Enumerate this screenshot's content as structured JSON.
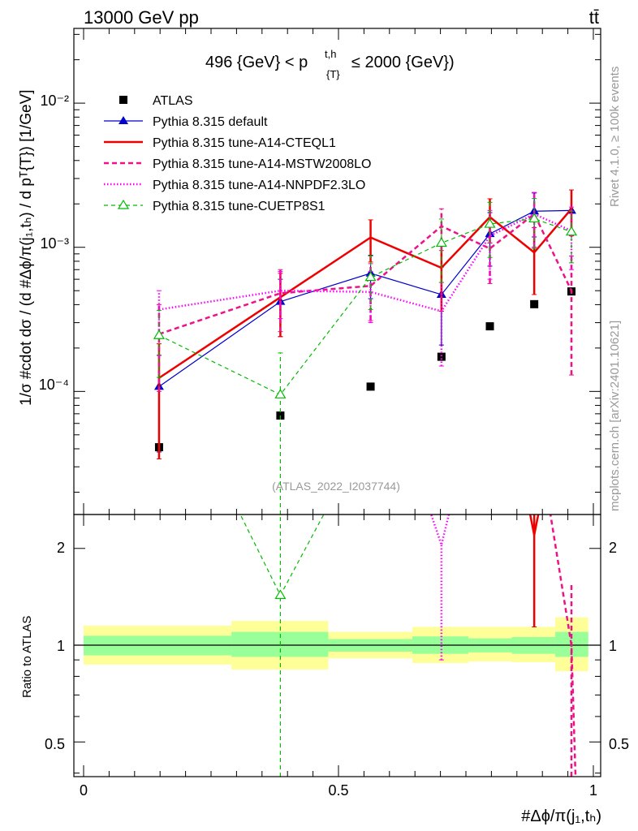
{
  "header": {
    "energy_label": "13000 GeV pp",
    "process_label": "tt̄",
    "range_label": "496 {GeV} < p",
    "range_sup": "t,h",
    "range_sub": "{T}",
    "range_tail": "≤ 2000 {GeV})",
    "watermark": "(ATLAS_2022_I2037744)",
    "side_rivet": "Rivet 4.1.0, ≥ 100k events",
    "side_site": "mcplots.cern.ch [arXiv:2401.10621]"
  },
  "axes": {
    "ylabel_main": "1/σ #cdot dσ / (d #Δϕ/π(j₁,tₕ) / d pᵀ{T}) [1/GeV]",
    "ylabel_ratio": "Ratio to ATLAS",
    "xlabel": "#Δϕ/π(j₁,tₕ)",
    "x_ticks": [
      "0",
      "0.5",
      "1"
    ],
    "main_y_ticks": [
      "10⁻⁴",
      "10⁻³",
      "10⁻²"
    ],
    "ratio_ticks": [
      "0.5",
      "1",
      "2"
    ]
  },
  "chart_data": [
    {
      "type": "scatter",
      "panel": "main",
      "yscale": "log",
      "xlim": [
        0,
        1
      ],
      "ylim": [
        1.4e-05,
        0.033
      ],
      "x": [
        0.148,
        0.386,
        0.563,
        0.702,
        0.797,
        0.884,
        0.957
      ],
      "x_edges": [
        0,
        0.29,
        0.48,
        0.645,
        0.755,
        0.84,
        0.925,
        0.99
      ],
      "series": [
        {
          "name": "ATLAS",
          "style": "data",
          "color": "#000000",
          "values": [
            4.1e-05,
            6.8e-05,
            0.000108,
            0.000174,
            0.000283,
            0.000403,
            0.000494
          ]
        },
        {
          "name": "Pythia 8.315 default",
          "style": "blue_tri",
          "color": "#0000cc",
          "values": [
            0.000108,
            0.00042,
            0.00066,
            0.00047,
            0.00124,
            0.00178,
            0.0018
          ],
          "err": [
            7e-05,
            0.00018,
            0.00022,
            0.00026,
            0.0005,
            0.0006,
            0.0
          ]
        },
        {
          "name": "Pythia 8.315 tune-A14-CTEQL1",
          "style": "red_solid",
          "color": "#ee0000",
          "values": [
            0.000124,
            0.00045,
            0.00117,
            0.00072,
            0.00162,
            0.00092,
            0.00185
          ],
          "err": [
            9e-05,
            0.00021,
            0.00038,
            0.00036,
            0.00055,
            0.00045,
            0.00065
          ]
        },
        {
          "name": "Pythia 8.315 tune-A14-MSTW2008LO",
          "style": "magenta_dash",
          "color": "#ee1188",
          "values": [
            0.00025,
            0.00048,
            0.00054,
            0.0014,
            0.00098,
            0.0017,
            0.0005
          ],
          "err": [
            0.00015,
            0.00022,
            0.00023,
            0.00045,
            0.00042,
            0.0007,
            0.00037
          ]
        },
        {
          "name": "Pythia 8.315 tune-A14-NNPDF2.3LO",
          "style": "magenta_dot",
          "color": "#ff00ff",
          "values": [
            0.00037,
            0.0005,
            0.00049,
            0.00036,
            0.0012,
            0.0017,
            0.0013
          ],
          "err": [
            0.00013,
            0.00018,
            0.00019,
            0.00021,
            0.0006,
            0.0007,
            0.0006
          ]
        },
        {
          "name": "Pythia 8.315 tune-CUETP8S1",
          "style": "green_dash",
          "color": "#00bb00",
          "values": [
            0.000245,
            9.5e-05,
            0.00062,
            0.00107,
            0.00145,
            0.00158,
            0.00128
          ],
          "err": [
            0.00012,
            9e-05,
            0.00025,
            0.0005,
            0.0006,
            0.0006,
            0.0005
          ]
        }
      ],
      "legend": [
        "ATLAS",
        "Pythia 8.315 default",
        "Pythia 8.315 tune-A14-CTEQL1",
        "Pythia 8.315 tune-A14-MSTW2008LO",
        "Pythia 8.315 tune-A14-NNPDF2.3LO",
        "Pythia 8.315 tune-CUETP8S1"
      ],
      "legend_position": "top-left"
    },
    {
      "type": "line",
      "panel": "ratio",
      "yscale": "log",
      "xlim": [
        0,
        1
      ],
      "ylim": [
        0.39,
        2.55
      ],
      "reference": 1,
      "x": [
        0.148,
        0.386,
        0.563,
        0.702,
        0.797,
        0.884,
        0.957
      ],
      "x_edges": [
        0,
        0.29,
        0.48,
        0.645,
        0.755,
        0.84,
        0.925,
        0.99
      ],
      "band_inner": [
        [
          0.93,
          1.07
        ],
        [
          0.92,
          1.1
        ],
        [
          0.955,
          1.045
        ],
        [
          0.94,
          1.065
        ],
        [
          0.95,
          1.05
        ],
        [
          0.94,
          1.06
        ],
        [
          0.92,
          1.1
        ]
      ],
      "band_outer": [
        [
          0.87,
          1.15
        ],
        [
          0.84,
          1.19
        ],
        [
          0.91,
          1.1
        ],
        [
          0.88,
          1.14
        ],
        [
          0.89,
          1.14
        ],
        [
          0.885,
          1.14
        ],
        [
          0.83,
          1.22
        ]
      ],
      "series": [
        {
          "name": "Pythia 8.315 tune-CUETP8S1",
          "color": "#00bb00",
          "style": "green_dash",
          "points": [
            [
              0.386,
              1.43
            ]
          ],
          "err": [
            [
              0.386,
              0.3,
              2.7
            ]
          ],
          "lines": [
            [
              [
                0.29,
                2.9
              ],
              [
                0.386,
                1.43
              ],
              [
                0.49,
                2.9
              ]
            ]
          ]
        },
        {
          "name": "Pythia 8.315 tune-A14-NNPDF2.3LO",
          "color": "#ff00ff",
          "style": "magenta_dot",
          "lines": [
            [
              [
                0.67,
                2.9
              ],
              [
                0.702,
                2.05
              ],
              [
                0.725,
                2.9
              ]
            ]
          ],
          "err": [
            [
              0.702,
              0.9,
              2.05
            ]
          ]
        },
        {
          "name": "Pythia 8.315 tune-A14-CTEQL1",
          "color": "#ee0000",
          "style": "red_solid",
          "lines": [
            [
              [
                0.875,
                2.6
              ],
              [
                0.884,
                2.2
              ],
              [
                0.893,
                2.6
              ]
            ]
          ],
          "err": [
            [
              0.884,
              1.14,
              2.6
            ]
          ]
        },
        {
          "name": "Pythia 8.315 tune-A14-MSTW2008LO",
          "color": "#ee1188",
          "style": "magenta_dash",
          "lines": [
            [
              [
                0.915,
                2.6
              ],
              [
                0.957,
                1.0
              ],
              [
                0.965,
                0.39
              ]
            ]
          ],
          "err": [
            [
              0.957,
              0.39,
              1.55
            ]
          ]
        }
      ]
    }
  ]
}
